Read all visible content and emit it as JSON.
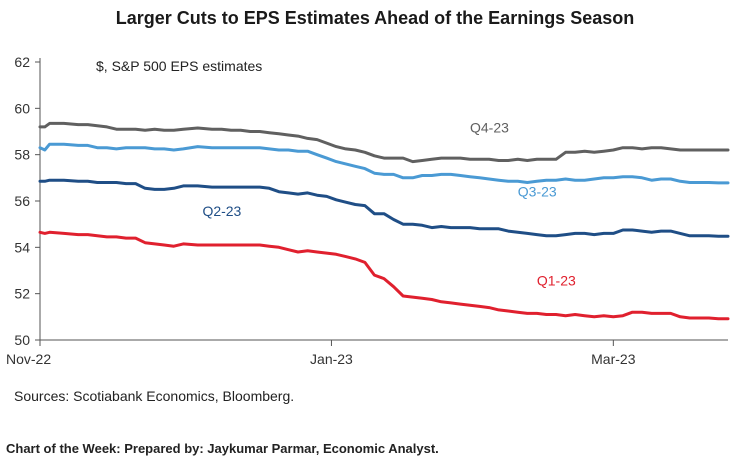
{
  "chart_data": {
    "type": "line",
    "title": "Larger Cuts to EPS Estimates Ahead of the Earnings Season",
    "unit_label": "$, S&P 500 EPS estimates",
    "xlabel": "",
    "ylabel": "",
    "ylim": [
      50,
      62
    ],
    "yticks": [
      "50",
      "52",
      "54",
      "56",
      "58",
      "60",
      "62"
    ],
    "xticks": [
      {
        "label": "Nov-22",
        "day": 0
      },
      {
        "label": "Jan-23",
        "day": 61
      },
      {
        "label": "Mar-23",
        "day": 120
      }
    ],
    "xlim_days": [
      0,
      144
    ],
    "series": [
      {
        "name": "Q4-23",
        "color": "#606060",
        "label_at": [
          90,
          58.95
        ],
        "x": [
          0,
          1,
          2,
          5,
          8,
          10,
          12,
          14,
          16,
          18,
          20,
          22,
          24,
          26,
          28,
          30,
          33,
          36,
          38,
          40,
          42,
          44,
          46,
          48,
          50,
          52,
          54,
          56,
          58,
          60,
          62,
          64,
          66,
          68,
          70,
          72,
          74,
          76,
          78,
          80,
          82,
          84,
          86,
          88,
          90,
          92,
          94,
          96,
          98,
          100,
          102,
          104,
          106,
          108,
          110,
          112,
          114,
          116,
          118,
          120,
          122,
          124,
          126,
          128,
          130,
          132,
          134,
          136,
          138,
          140,
          142,
          144
        ],
        "values": [
          59.2,
          59.2,
          59.35,
          59.35,
          59.3,
          59.3,
          59.25,
          59.2,
          59.1,
          59.1,
          59.1,
          59.05,
          59.1,
          59.05,
          59.05,
          59.1,
          59.15,
          59.1,
          59.1,
          59.05,
          59.05,
          59.0,
          59.0,
          58.95,
          58.9,
          58.85,
          58.8,
          58.7,
          58.65,
          58.5,
          58.35,
          58.25,
          58.2,
          58.1,
          57.95,
          57.85,
          57.85,
          57.85,
          57.7,
          57.75,
          57.8,
          57.85,
          57.85,
          57.85,
          57.8,
          57.8,
          57.8,
          57.75,
          57.75,
          57.8,
          57.75,
          57.8,
          57.8,
          57.8,
          58.1,
          58.1,
          58.15,
          58.1,
          58.15,
          58.2,
          58.3,
          58.3,
          58.25,
          58.3,
          58.3,
          58.25,
          58.2,
          58.2,
          58.2,
          58.2,
          58.2,
          58.2
        ]
      },
      {
        "name": "Q3-23",
        "color": "#4a9ad4",
        "label_at": [
          100,
          56.2
        ],
        "x": [
          0,
          1,
          2,
          5,
          8,
          10,
          12,
          14,
          16,
          18,
          20,
          22,
          24,
          26,
          28,
          30,
          33,
          36,
          38,
          40,
          42,
          44,
          46,
          48,
          50,
          52,
          54,
          56,
          58,
          60,
          62,
          64,
          66,
          68,
          70,
          72,
          74,
          76,
          78,
          80,
          82,
          84,
          86,
          88,
          90,
          92,
          94,
          96,
          98,
          100,
          102,
          104,
          106,
          108,
          110,
          112,
          114,
          116,
          118,
          120,
          122,
          124,
          126,
          128,
          130,
          132,
          134,
          136,
          138,
          140,
          142,
          144
        ],
        "values": [
          58.3,
          58.2,
          58.45,
          58.45,
          58.4,
          58.4,
          58.3,
          58.3,
          58.25,
          58.3,
          58.3,
          58.3,
          58.25,
          58.25,
          58.2,
          58.25,
          58.35,
          58.3,
          58.3,
          58.3,
          58.3,
          58.3,
          58.3,
          58.25,
          58.2,
          58.2,
          58.15,
          58.15,
          58.0,
          57.85,
          57.7,
          57.6,
          57.5,
          57.4,
          57.2,
          57.15,
          57.15,
          57.0,
          57.0,
          57.1,
          57.1,
          57.15,
          57.15,
          57.1,
          57.05,
          57.0,
          56.95,
          56.9,
          56.85,
          56.85,
          56.8,
          56.85,
          56.9,
          56.9,
          56.95,
          56.9,
          56.9,
          56.95,
          57.0,
          57.0,
          57.05,
          57.05,
          57.0,
          56.9,
          56.95,
          56.95,
          56.85,
          56.8,
          56.8,
          56.8,
          56.78,
          56.78
        ]
      },
      {
        "name": "Q2-23",
        "color": "#1f4e86",
        "label_at": [
          34,
          55.35
        ],
        "x": [
          0,
          1,
          2,
          5,
          8,
          10,
          12,
          14,
          16,
          18,
          20,
          22,
          24,
          26,
          28,
          30,
          33,
          36,
          38,
          40,
          42,
          44,
          46,
          48,
          50,
          52,
          54,
          56,
          58,
          60,
          62,
          64,
          66,
          68,
          70,
          72,
          74,
          76,
          78,
          80,
          82,
          84,
          86,
          88,
          90,
          92,
          94,
          96,
          98,
          100,
          102,
          104,
          106,
          108,
          110,
          112,
          114,
          116,
          118,
          120,
          122,
          124,
          126,
          128,
          130,
          132,
          134,
          136,
          138,
          140,
          142,
          144
        ],
        "values": [
          56.85,
          56.85,
          56.9,
          56.9,
          56.85,
          56.85,
          56.8,
          56.8,
          56.8,
          56.75,
          56.75,
          56.55,
          56.5,
          56.5,
          56.55,
          56.65,
          56.65,
          56.6,
          56.6,
          56.6,
          56.6,
          56.6,
          56.6,
          56.55,
          56.4,
          56.35,
          56.3,
          56.35,
          56.25,
          56.2,
          56.05,
          55.95,
          55.85,
          55.8,
          55.45,
          55.45,
          55.2,
          55.0,
          55.0,
          54.95,
          54.85,
          54.9,
          54.85,
          54.85,
          54.85,
          54.8,
          54.8,
          54.8,
          54.7,
          54.65,
          54.6,
          54.55,
          54.5,
          54.5,
          54.55,
          54.6,
          54.6,
          54.55,
          54.6,
          54.6,
          54.75,
          54.75,
          54.7,
          54.65,
          54.7,
          54.7,
          54.6,
          54.5,
          54.5,
          54.5,
          54.48,
          54.48
        ]
      },
      {
        "name": "Q1-23",
        "color": "#e0202e",
        "label_at": [
          104,
          52.35
        ],
        "x": [
          0,
          1,
          2,
          5,
          8,
          10,
          12,
          14,
          16,
          18,
          20,
          22,
          24,
          26,
          28,
          30,
          33,
          36,
          38,
          40,
          42,
          44,
          46,
          48,
          50,
          52,
          54,
          56,
          58,
          60,
          62,
          64,
          66,
          68,
          70,
          72,
          74,
          76,
          78,
          80,
          82,
          84,
          86,
          88,
          90,
          92,
          94,
          96,
          98,
          100,
          102,
          104,
          106,
          108,
          110,
          112,
          114,
          116,
          118,
          120,
          122,
          124,
          126,
          128,
          130,
          132,
          134,
          136,
          138,
          140,
          142,
          144
        ],
        "values": [
          54.65,
          54.6,
          54.65,
          54.6,
          54.55,
          54.55,
          54.5,
          54.45,
          54.45,
          54.4,
          54.4,
          54.2,
          54.15,
          54.1,
          54.05,
          54.15,
          54.1,
          54.1,
          54.1,
          54.1,
          54.1,
          54.1,
          54.1,
          54.05,
          54.0,
          53.9,
          53.8,
          53.85,
          53.8,
          53.75,
          53.7,
          53.6,
          53.5,
          53.35,
          52.8,
          52.65,
          52.3,
          51.9,
          51.85,
          51.8,
          51.75,
          51.65,
          51.6,
          51.55,
          51.5,
          51.45,
          51.4,
          51.3,
          51.25,
          51.2,
          51.15,
          51.15,
          51.1,
          51.1,
          51.05,
          51.1,
          51.05,
          51.0,
          51.05,
          51.0,
          51.05,
          51.2,
          51.2,
          51.15,
          51.15,
          51.15,
          51.0,
          50.95,
          50.95,
          50.95,
          50.92,
          50.92
        ]
      }
    ]
  },
  "sources": "Sources: Scotiabank Economics, Bloomberg.",
  "credit": "Chart of the Week: Prepared by: Jaykumar Parmar, Economic Analyst."
}
